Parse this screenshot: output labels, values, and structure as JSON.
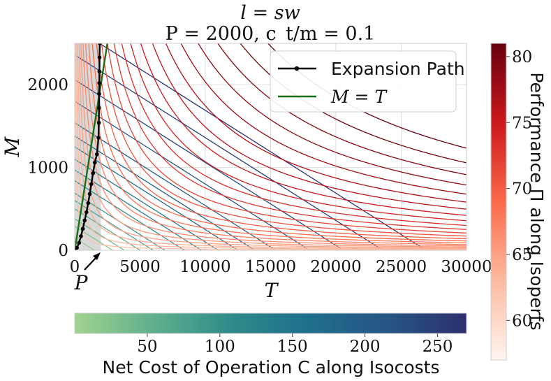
{
  "chart_data": {
    "type": "line",
    "title_line1": "l = sw",
    "title_line2": "P = 2000, c_t/m = 0.1",
    "xlabel": "T",
    "ylabel": "M",
    "xlim": [
      0,
      30000
    ],
    "ylim": [
      0,
      2500
    ],
    "x_ticks": [
      0,
      5000,
      10000,
      15000,
      20000,
      25000,
      30000
    ],
    "x_tick_labels": [
      "0",
      "5000",
      "10000",
      "15000",
      "20000",
      "25000",
      "30000"
    ],
    "y_ticks": [
      0,
      1000,
      2000
    ],
    "y_tick_labels": [
      "0",
      "1000",
      "2000"
    ],
    "grid": true,
    "shaded_region": {
      "x_from": 0,
      "x_to": 2000,
      "color": "#d9d9d9"
    },
    "annotation": {
      "text": "P",
      "points_to_x": 2000
    },
    "legend": {
      "placement": "top-right",
      "entries": [
        {
          "label": "Expansion Path",
          "color": "#000000",
          "marker": true
        },
        {
          "label": "M = T",
          "color": "#1a6e1a",
          "marker": false
        }
      ]
    },
    "expansion_path": {
      "x": [
        0,
        170,
        330,
        480,
        620,
        760,
        900,
        1030,
        1150,
        1270,
        1400,
        1540,
        1700,
        1820,
        1850,
        1860,
        1870,
        1880,
        1890,
        1900,
        1920
      ],
      "y": [
        0,
        30,
        90,
        170,
        260,
        360,
        460,
        570,
        680,
        800,
        930,
        1060,
        1160,
        1360,
        1540,
        1720,
        1890,
        2020,
        2160,
        2330,
        2500
      ]
    },
    "identity_line": {
      "x": [
        0,
        2500
      ],
      "y": [
        0,
        2500
      ]
    },
    "isoperf_levels": [
      57,
      58,
      59,
      60,
      61,
      62,
      63,
      64,
      65,
      66,
      67,
      68,
      69,
      70,
      71,
      72,
      73,
      74,
      75,
      76,
      77,
      78,
      79,
      80,
      81
    ],
    "isoperf_k": [
      140000,
      330000,
      560000,
      850000,
      1190000,
      1600000,
      2090000,
      2680000,
      3370000,
      4180000,
      5140000,
      6250000,
      7530000,
      9000000,
      10700000,
      12650000,
      14900000,
      17450000,
      20350000,
      23650000,
      27400000,
      31700000,
      37000000
    ],
    "isocost_levels": [
      5,
      15,
      25,
      35,
      45,
      55,
      65,
      75,
      85,
      95,
      105,
      115,
      125,
      135,
      145,
      155,
      165,
      175,
      185,
      195,
      205,
      215,
      225,
      235,
      245
    ],
    "isocost_axis_intercepts": [
      {
        "m0": 150,
        "t0": 1500
      },
      {
        "m0": 290,
        "t0": 2900
      },
      {
        "m0": 380,
        "t0": 3800
      },
      {
        "m0": 500,
        "t0": 5000
      },
      {
        "m0": 600,
        "t0": 6000
      },
      {
        "m0": 690,
        "t0": 6900
      },
      {
        "m0": 840,
        "t0": 8400
      },
      {
        "m0": 970,
        "t0": 9700
      },
      {
        "m0": 1100,
        "t0": 11000
      },
      {
        "m0": 1250,
        "t0": 12500
      },
      {
        "m0": 1380,
        "t0": 13800
      },
      {
        "m0": 1540,
        "t0": 15400
      },
      {
        "m0": 1800,
        "t0": 18000
      },
      {
        "m0": 2060,
        "t0": 20600
      },
      {
        "m0": 2360,
        "t0": 23600
      },
      {
        "m0": 2690,
        "t0": 26900
      }
    ],
    "colorbar_right": {
      "label": "Performance Π along Isoperfs",
      "min": 57,
      "max": 81,
      "ticks": [
        60,
        65,
        70,
        75,
        80
      ],
      "colors": [
        "#fff5f0",
        "#fcbba1",
        "#fb6a4a",
        "#cb181d",
        "#67000d"
      ]
    },
    "colorbar_bottom": {
      "label": "Net Cost of Operation C along Isocosts",
      "min": 0,
      "max": 270,
      "ticks": [
        50,
        100,
        150,
        200,
        250
      ],
      "colors": [
        "#a1d28f",
        "#5fb08d",
        "#2e8b8a",
        "#1f6e8c",
        "#265586",
        "#2c2f6e"
      ]
    }
  }
}
